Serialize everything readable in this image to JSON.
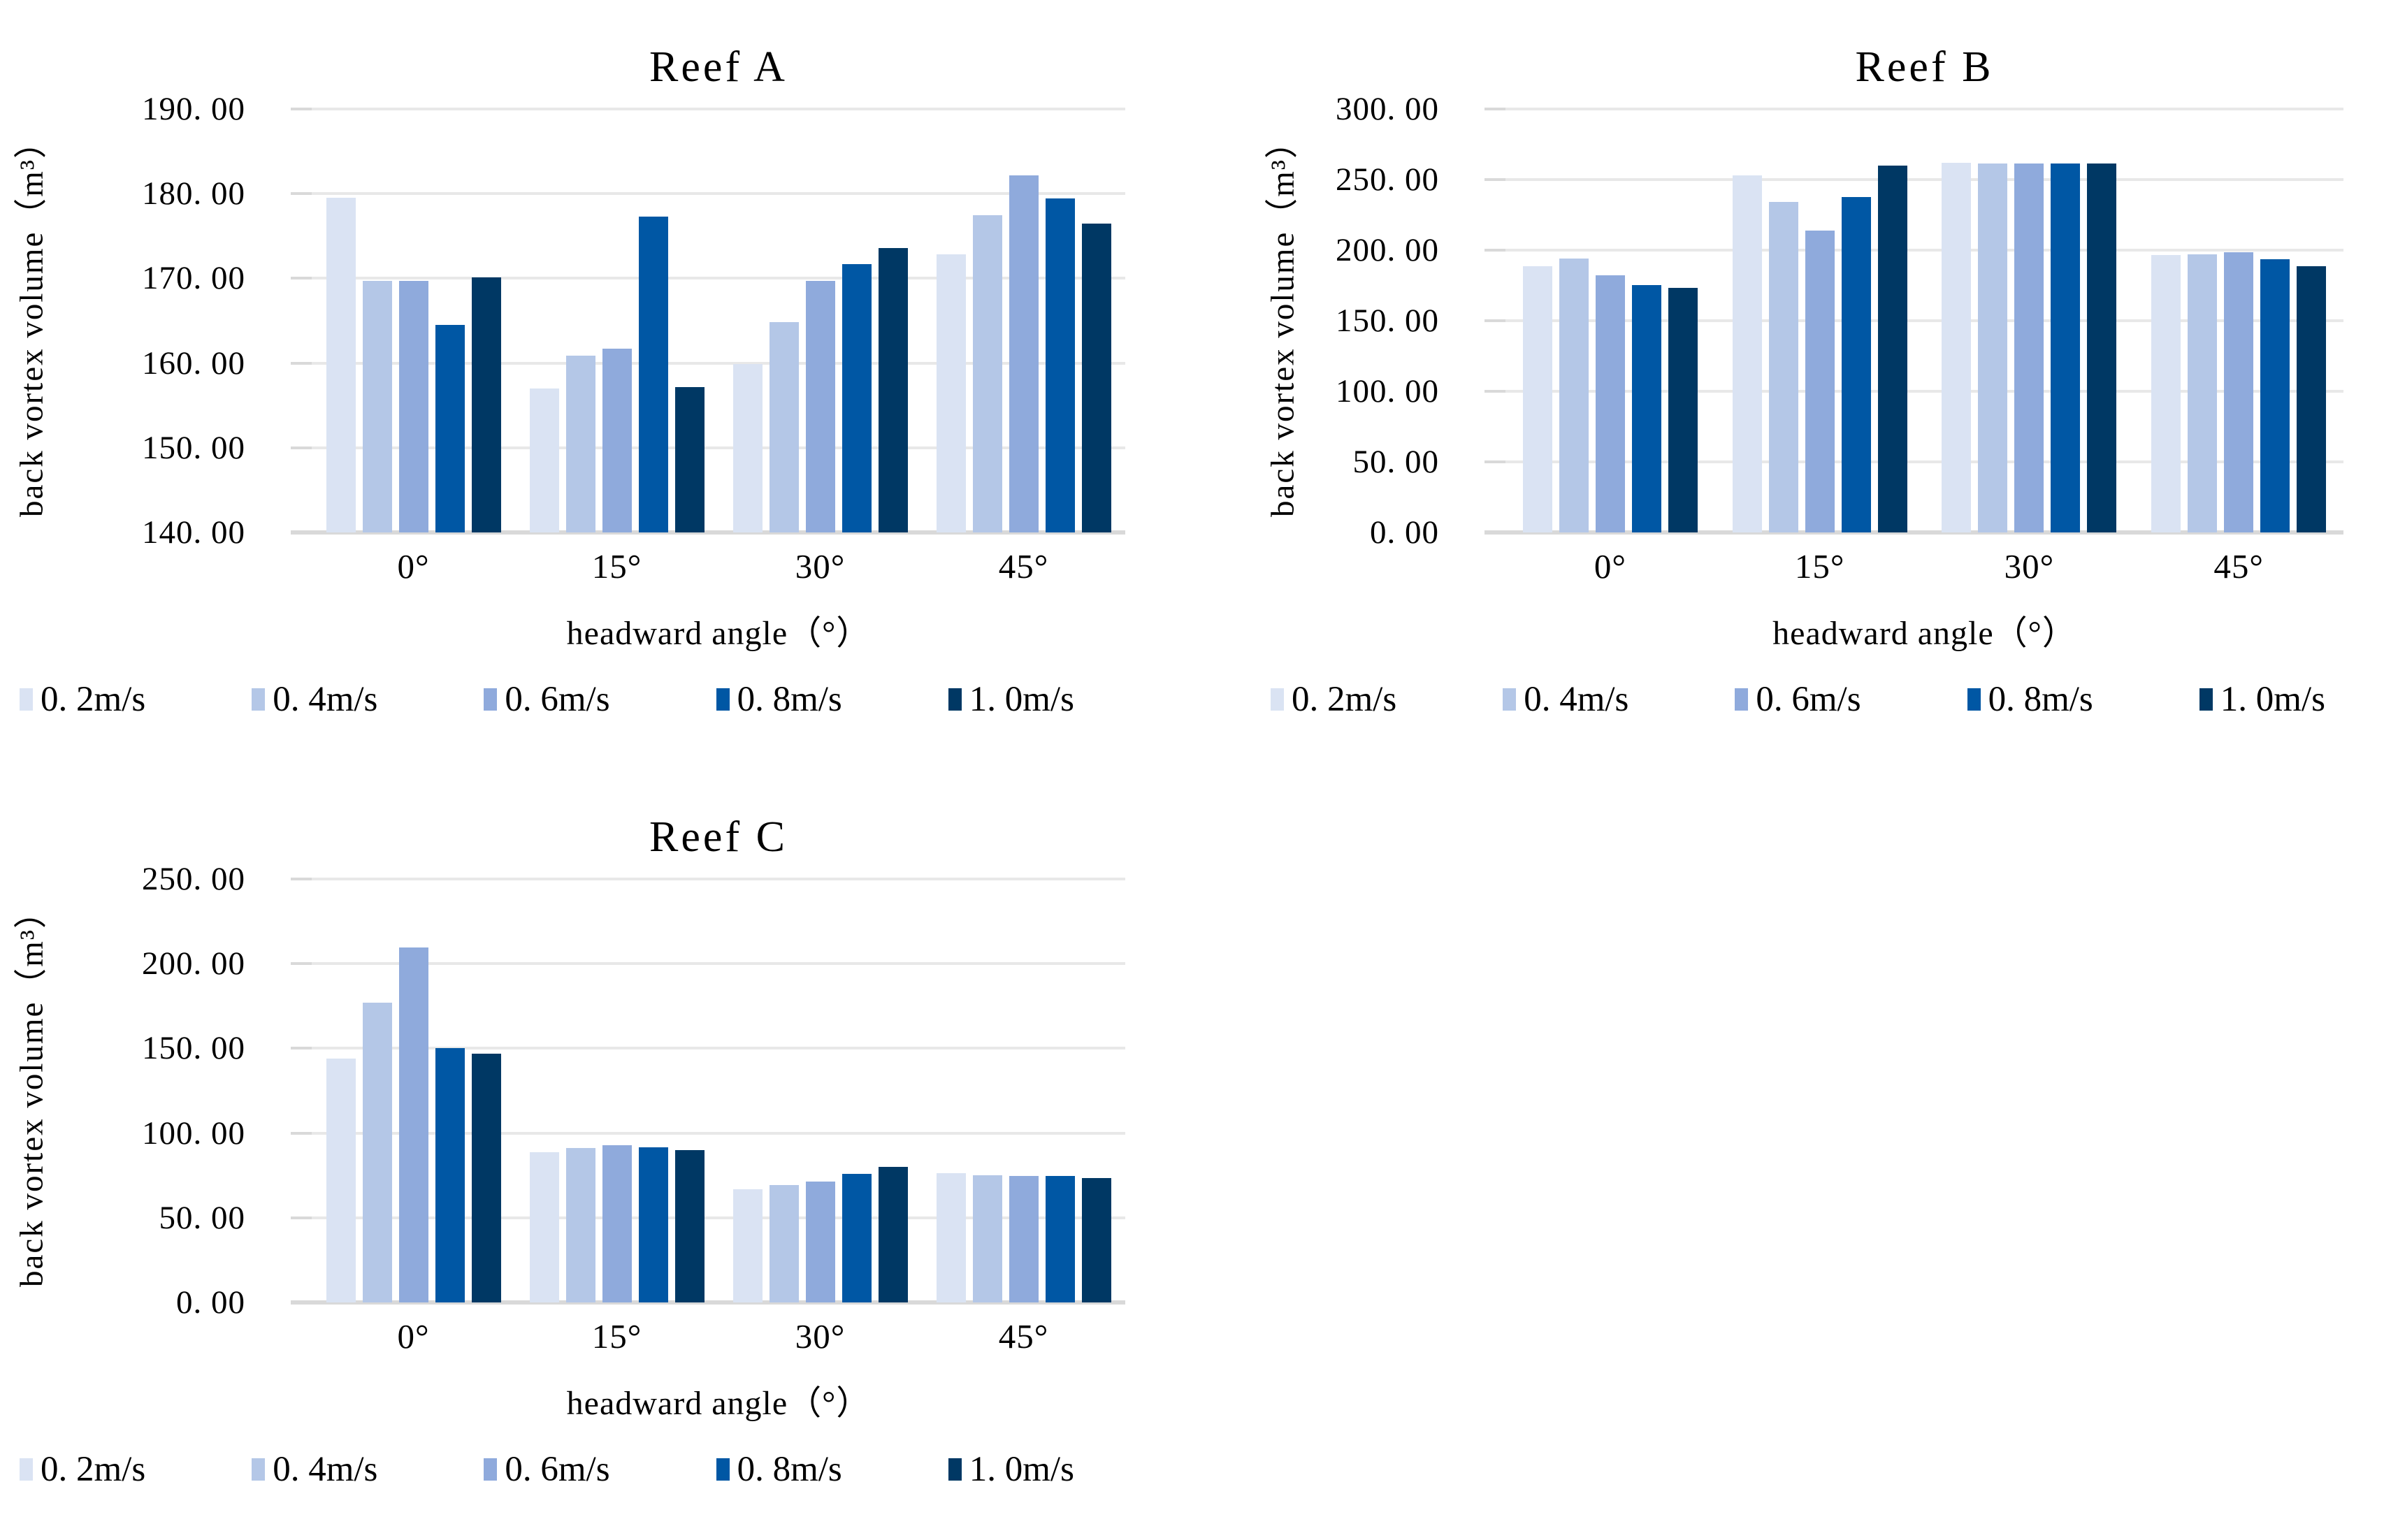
{
  "figure": {
    "background": "#ffffff",
    "text_color": "#000000",
    "gridline_color": "#e8e8e8",
    "axis_line_color": "#d9d9d9",
    "tick_mark_color": "#d9d9d9"
  },
  "series_colors": [
    "#dae3f3",
    "#b4c7e7",
    "#8faadc",
    "#0057a4",
    "#003864"
  ],
  "legend": {
    "labels": [
      "0. 2m/s",
      "0. 4m/s",
      "0. 6m/s",
      "0. 8m/s",
      "1. 0m/s"
    ]
  },
  "chart_data": [
    {
      "type": "bar",
      "title": "Reef A",
      "xlabel": "headward angle（°）",
      "ylabel": "back vortex volume（m³）",
      "categories": [
        "0°",
        "15°",
        "30°",
        "45°"
      ],
      "ylim": [
        140,
        190
      ],
      "grid": true,
      "legend_position": "bottom",
      "yticks": [
        {
          "value": 190,
          "label": "190. 00"
        },
        {
          "value": 180,
          "label": "180. 00"
        },
        {
          "value": 170,
          "label": "170. 00"
        },
        {
          "value": 160,
          "label": "160. 00"
        },
        {
          "value": 150,
          "label": "150. 00"
        },
        {
          "value": 140,
          "label": "140. 00"
        }
      ],
      "series": [
        {
          "name": "0.2m/s",
          "values": [
            179.5,
            157.0,
            159.9,
            172.8
          ]
        },
        {
          "name": "0.4m/s",
          "values": [
            169.7,
            160.9,
            164.8,
            177.5
          ]
        },
        {
          "name": "0.6m/s",
          "values": [
            169.7,
            161.7,
            169.7,
            182.2
          ]
        },
        {
          "name": "0.8m/s",
          "values": [
            164.5,
            177.3,
            171.7,
            179.4
          ]
        },
        {
          "name": "1.0m/s",
          "values": [
            170.1,
            157.2,
            173.6,
            176.5
          ]
        }
      ]
    },
    {
      "type": "bar",
      "title": "Reef B",
      "xlabel": "headward angle（°）",
      "ylabel": "back vortex volume（m³）",
      "categories": [
        "0°",
        "15°",
        "30°",
        "45°"
      ],
      "ylim": [
        0,
        300
      ],
      "grid": true,
      "legend_position": "bottom",
      "yticks": [
        {
          "value": 300,
          "label": "300. 00"
        },
        {
          "value": 250,
          "label": "250. 00"
        },
        {
          "value": 200,
          "label": "200. 00"
        },
        {
          "value": 150,
          "label": "150. 00"
        },
        {
          "value": 100,
          "label": "100. 00"
        },
        {
          "value": 50,
          "label": "50. 00"
        },
        {
          "value": 0,
          "label": "0. 00"
        }
      ],
      "series": [
        {
          "name": "0.2m/s",
          "values": [
            188.5,
            253.0,
            262.0,
            196.5
          ]
        },
        {
          "name": "0.4m/s",
          "values": [
            194.0,
            234.0,
            261.5,
            197.0
          ]
        },
        {
          "name": "0.6m/s",
          "values": [
            182.0,
            214.0,
            261.5,
            198.5
          ]
        },
        {
          "name": "0.8m/s",
          "values": [
            175.5,
            237.5,
            261.5,
            193.5
          ]
        },
        {
          "name": "1.0m/s",
          "values": [
            173.5,
            260.0,
            261.5,
            188.5
          ]
        }
      ]
    },
    {
      "type": "bar",
      "title": "Reef C",
      "xlabel": "headward angle（°）",
      "ylabel": "back vortex volume（m³）",
      "categories": [
        "0°",
        "15°",
        "30°",
        "45°"
      ],
      "ylim": [
        0,
        250
      ],
      "grid": true,
      "legend_position": "bottom",
      "yticks": [
        {
          "value": 250,
          "label": "250. 00"
        },
        {
          "value": 200,
          "label": "200. 00"
        },
        {
          "value": 150,
          "label": "150. 00"
        },
        {
          "value": 100,
          "label": "100. 00"
        },
        {
          "value": 50,
          "label": "50. 00"
        },
        {
          "value": 0,
          "label": "0. 00"
        }
      ],
      "series": [
        {
          "name": "0.2m/s",
          "values": [
            144.0,
            88.5,
            67.0,
            76.5
          ]
        },
        {
          "name": "0.4m/s",
          "values": [
            177.0,
            91.0,
            69.5,
            75.0
          ]
        },
        {
          "name": "0.6m/s",
          "values": [
            209.5,
            93.0,
            71.5,
            74.5
          ]
        },
        {
          "name": "0.8m/s",
          "values": [
            150.0,
            91.5,
            76.0,
            74.5
          ]
        },
        {
          "name": "1.0m/s",
          "values": [
            147.0,
            90.0,
            80.0,
            73.5
          ]
        }
      ]
    }
  ]
}
